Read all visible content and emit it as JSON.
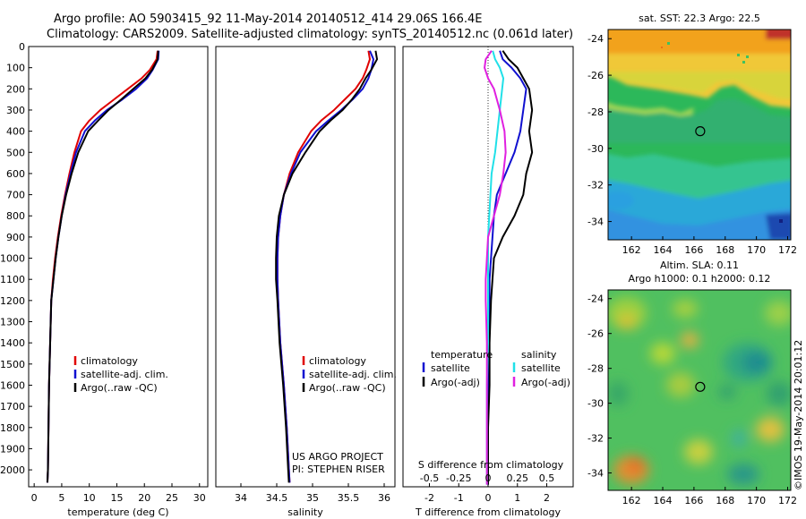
{
  "header": {
    "title_line1": "Argo profile: AO 5903415_92 11-May-2014 20140512_414 29.06S 166.4E",
    "title_line2": "Climatology: CARS2009. Satellite-adjusted climatology: synTS_20140512.nc (0.061d later)"
  },
  "colors": {
    "climatology": "#e00000",
    "satellite": "#1010d0",
    "argo": "#000000",
    "salinity_satellite": "#20e0e8",
    "salinity_argo": "#e020e0"
  },
  "chart_data": [
    {
      "type": "line",
      "id": "temperature",
      "xlabel": "temperature (deg C)",
      "ylabel": "",
      "xlim": [
        -1,
        31.5
      ],
      "ylim": [
        2080,
        0
      ],
      "xticks": [
        0,
        5,
        10,
        15,
        20,
        25,
        30
      ],
      "xticklabels": [
        "0",
        "5",
        "10",
        "15",
        "20",
        "25",
        "30"
      ],
      "yticks": [
        0,
        100,
        200,
        300,
        400,
        500,
        600,
        700,
        800,
        900,
        1000,
        1100,
        1200,
        1300,
        1400,
        1500,
        1600,
        1700,
        1800,
        1900,
        2000
      ],
      "yticklabels": [
        "0",
        "100",
        "200",
        "300",
        "400",
        "500",
        "600",
        "700",
        "800",
        "900",
        "1000",
        "1100",
        "1200",
        "1300",
        "1400",
        "1500",
        "1600",
        "1700",
        "1800",
        "1900",
        "2000"
      ],
      "legend": [
        "climatology",
        "satellite-adj. clim.",
        "Argo(..raw -QC)"
      ],
      "legend_placement": "lower-center",
      "series": [
        {
          "name": "climatology",
          "color": "#e00000",
          "x": [
            22.4,
            22.2,
            21.0,
            19.5,
            17.0,
            14.5,
            12.0,
            10.0,
            8.5,
            7.3,
            6.4,
            5.6,
            4.9,
            4.3,
            3.8,
            3.4,
            3.1,
            2.9,
            2.7,
            2.6,
            2.5,
            2.4
          ],
          "y": [
            20,
            60,
            110,
            150,
            200,
            250,
            300,
            350,
            400,
            500,
            600,
            700,
            800,
            900,
            1000,
            1100,
            1200,
            1400,
            1600,
            1800,
            2000,
            2060
          ]
        },
        {
          "name": "satellite-adj. clim.",
          "color": "#1010d0",
          "x": [
            22.6,
            22.5,
            21.5,
            20.5,
            18.5,
            16.0,
            13.2,
            11.0,
            9.2,
            7.6,
            6.6,
            5.7,
            5.0,
            4.4,
            3.9,
            3.5,
            3.1,
            2.9,
            2.7,
            2.6,
            2.5,
            2.4
          ],
          "y": [
            20,
            60,
            110,
            150,
            200,
            250,
            300,
            350,
            400,
            500,
            600,
            700,
            800,
            900,
            1000,
            1100,
            1200,
            1400,
            1600,
            1800,
            2000,
            2060
          ]
        },
        {
          "name": "Argo(..raw -QC)",
          "color": "#000000",
          "x": [
            22.5,
            22.4,
            21.4,
            20.2,
            18.0,
            15.8,
            13.5,
            11.6,
            9.8,
            8.0,
            6.8,
            5.8,
            5.0,
            4.4,
            3.9,
            3.5,
            3.1,
            2.9,
            2.7,
            2.6,
            2.5,
            2.4
          ],
          "y": [
            20,
            60,
            110,
            150,
            200,
            250,
            300,
            350,
            400,
            500,
            600,
            700,
            800,
            900,
            1000,
            1100,
            1200,
            1400,
            1600,
            1800,
            2000,
            2060
          ]
        }
      ]
    },
    {
      "type": "line",
      "id": "salinity",
      "xlabel": "salinity",
      "xlim": [
        33.65,
        36.15
      ],
      "ylim": [
        2080,
        0
      ],
      "xticks": [
        34,
        34.5,
        35,
        35.5,
        36
      ],
      "xticklabels": [
        "34",
        "34.5",
        "35",
        "35.5",
        "36"
      ],
      "legend": [
        "climatology",
        "satellite-adj. clim.",
        "Argo(..raw -QC)"
      ],
      "legend_placement": "lower-right",
      "annotation": [
        "US ARGO PROJECT",
        "PI: STEPHEN RISER"
      ],
      "series": [
        {
          "name": "climatology",
          "color": "#e00000",
          "x": [
            35.78,
            35.8,
            35.75,
            35.7,
            35.6,
            35.45,
            35.3,
            35.12,
            34.98,
            34.8,
            34.68,
            34.6,
            34.55,
            34.52,
            34.51,
            34.51,
            34.52,
            34.55,
            34.6,
            34.64,
            34.67,
            34.68
          ],
          "y": [
            20,
            60,
            110,
            150,
            200,
            250,
            300,
            350,
            400,
            500,
            600,
            700,
            800,
            900,
            1000,
            1100,
            1200,
            1400,
            1600,
            1800,
            2000,
            2060
          ]
        },
        {
          "name": "satellite-adj. clim.",
          "color": "#1010d0",
          "x": [
            35.8,
            35.85,
            35.82,
            35.78,
            35.7,
            35.56,
            35.4,
            35.22,
            35.05,
            34.83,
            34.7,
            34.6,
            34.55,
            34.52,
            34.51,
            34.51,
            34.52,
            34.55,
            34.6,
            34.64,
            34.67,
            34.68
          ],
          "y": [
            20,
            60,
            110,
            150,
            200,
            250,
            300,
            350,
            400,
            500,
            600,
            700,
            800,
            900,
            1000,
            1100,
            1200,
            1400,
            1600,
            1800,
            2000,
            2060
          ]
        },
        {
          "name": "Argo(..raw -QC)",
          "color": "#000000",
          "x": [
            35.88,
            35.9,
            35.82,
            35.74,
            35.66,
            35.55,
            35.42,
            35.25,
            35.1,
            34.9,
            34.72,
            34.6,
            34.53,
            34.5,
            34.49,
            34.49,
            34.51,
            34.54,
            34.59,
            34.63,
            34.66,
            34.67
          ],
          "y": [
            20,
            60,
            110,
            150,
            200,
            250,
            300,
            350,
            400,
            500,
            600,
            700,
            800,
            900,
            1000,
            1100,
            1200,
            1400,
            1600,
            1800,
            2000,
            2060
          ]
        }
      ]
    },
    {
      "type": "line",
      "id": "difference",
      "xlabel": "T difference from climatology",
      "top_xlabel": "S difference from climatology",
      "xlim": [
        -2.9,
        2.9
      ],
      "ylim": [
        2080,
        0
      ],
      "xticks": [
        -2,
        -1,
        0,
        1,
        2
      ],
      "xticklabels": [
        "-2",
        "-1",
        "0",
        "1",
        "2"
      ],
      "top_xticklabels": [
        "-0.5",
        "-0.25",
        "0",
        "0.25",
        "0.5"
      ],
      "legend_left_title": "temperature",
      "legend_left": [
        "satellite",
        "Argo(-adj)"
      ],
      "legend_right_title": "salinity",
      "legend_right": [
        "satellite",
        "Argo(-adj)"
      ],
      "series": [
        {
          "name": "satellite",
          "color": "#1010d0",
          "quantity": "temperature",
          "x": [
            0.4,
            0.5,
            0.8,
            1.1,
            1.3,
            1.2,
            1.1,
            0.9,
            0.6,
            0.3,
            0.2,
            0.15,
            0.1,
            0.05,
            0.05,
            0.0,
            0.0,
            0.0,
            0.0,
            0.0,
            0.0
          ],
          "y": [
            20,
            60,
            100,
            150,
            200,
            300,
            400,
            500,
            600,
            700,
            800,
            900,
            1000,
            1100,
            1200,
            1400,
            1600,
            1800,
            2000,
            2060,
            2070
          ]
        },
        {
          "name": "Argo(-adj)",
          "color": "#000000",
          "quantity": "temperature",
          "x": [
            0.5,
            0.7,
            1.0,
            1.2,
            1.4,
            1.5,
            1.4,
            1.5,
            1.3,
            1.2,
            0.9,
            0.5,
            0.2,
            0.15,
            0.1,
            0.05,
            0.05,
            0.0,
            0.0,
            0.0,
            0.0
          ],
          "y": [
            20,
            60,
            100,
            150,
            200,
            300,
            400,
            500,
            600,
            700,
            800,
            900,
            1000,
            1100,
            1200,
            1400,
            1600,
            1800,
            2000,
            2060,
            2070
          ]
        },
        {
          "name": "satellite",
          "color": "#20e0e8",
          "quantity": "salinity",
          "x": [
            0.04,
            0.06,
            0.1,
            0.13,
            0.12,
            0.1,
            0.08,
            0.06,
            0.03,
            0.02,
            0.01,
            0.0,
            0.0,
            0.0,
            0.0,
            0.0,
            -0.01,
            -0.01,
            -0.01,
            -0.01,
            -0.01
          ],
          "y": [
            20,
            60,
            100,
            150,
            200,
            300,
            400,
            500,
            600,
            700,
            800,
            900,
            1000,
            1100,
            1200,
            1400,
            1600,
            1800,
            2000,
            2060,
            2070
          ]
        },
        {
          "name": "Argo(-adj)",
          "color": "#e020e0",
          "quantity": "salinity",
          "x": [
            0.03,
            -0.02,
            -0.03,
            0.0,
            0.05,
            0.1,
            0.14,
            0.15,
            0.13,
            0.1,
            0.05,
            0.0,
            -0.01,
            -0.02,
            -0.02,
            -0.01,
            -0.01,
            -0.01,
            -0.01,
            -0.01,
            -0.01
          ],
          "y": [
            20,
            60,
            100,
            150,
            200,
            300,
            400,
            500,
            600,
            700,
            800,
            900,
            1000,
            1100,
            1200,
            1400,
            1600,
            1800,
            2000,
            2060,
            2070
          ]
        }
      ]
    },
    {
      "type": "heatmap",
      "id": "sst-map",
      "title": "sat. SST: 22.3 Argo: 22.5",
      "xlim": [
        160.5,
        172.2
      ],
      "ylim": [
        -35,
        -23.5
      ],
      "xticks": [
        162,
        164,
        166,
        168,
        170,
        172
      ],
      "xticklabels": [
        "162",
        "164",
        "166",
        "168",
        "170",
        "172"
      ],
      "yticks": [
        -24,
        -26,
        -28,
        -30,
        -32,
        -34
      ],
      "yticklabels": [
        "-24",
        "-26",
        "-28",
        "-30",
        "-32",
        "-34"
      ],
      "marker": {
        "lon": 166.4,
        "lat": -29.06
      }
    },
    {
      "type": "heatmap",
      "id": "sla-map",
      "title_line1": "Altim. SLA: 0.11",
      "title_line2": "Argo h1000: 0.1 h2000: 0.12",
      "xlim": [
        160.5,
        172.2
      ],
      "ylim": [
        -35,
        -23.5
      ],
      "xticks": [
        162,
        164,
        166,
        168,
        170,
        172
      ],
      "xticklabels": [
        "162",
        "164",
        "166",
        "168",
        "170",
        "172"
      ],
      "yticks": [
        -24,
        -26,
        -28,
        -30,
        -32,
        -34
      ],
      "yticklabels": [
        "-24",
        "-26",
        "-28",
        "-30",
        "-32",
        "-34"
      ],
      "marker": {
        "lon": 166.4,
        "lat": -29.06
      }
    }
  ],
  "credit": "©IMOS 19-May-2014 20:01:12"
}
